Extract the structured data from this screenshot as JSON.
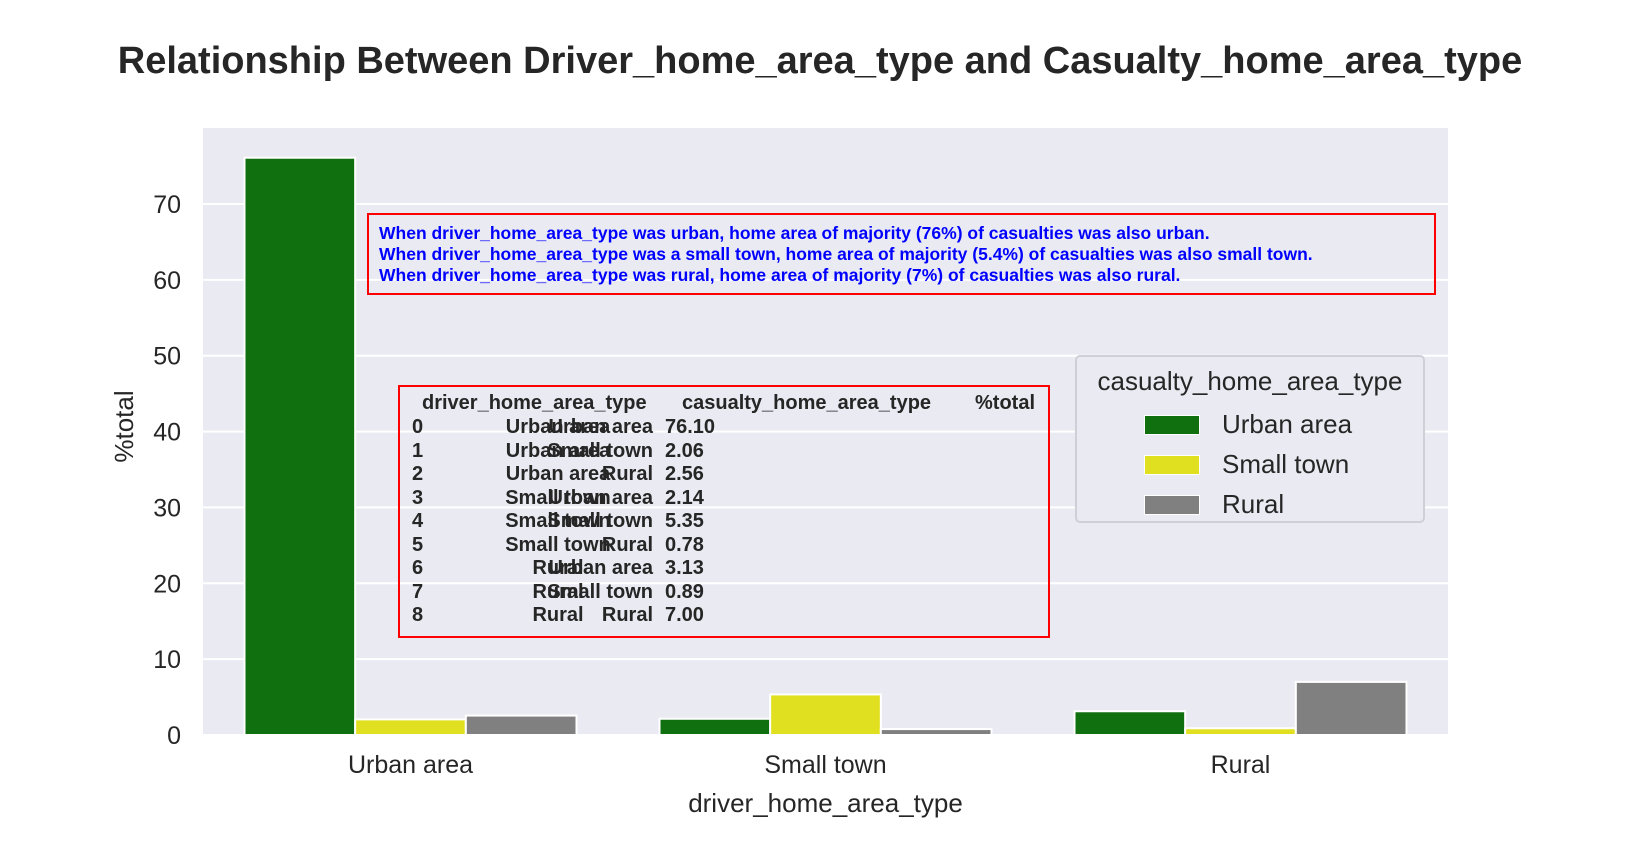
{
  "chart_data": {
    "type": "bar",
    "title": "Relationship Between Driver_home_area_type and Casualty_home_area_type",
    "xlabel": "driver_home_area_type",
    "ylabel": "%total",
    "categories": [
      "Urban area",
      "Small town",
      "Rural"
    ],
    "series": [
      {
        "name": "Urban area",
        "color": "#107010",
        "values": [
          76.1,
          2.14,
          3.13
        ]
      },
      {
        "name": "Small town",
        "color": "#e0e020",
        "values": [
          2.06,
          5.35,
          0.89
        ]
      },
      {
        "name": "Rural",
        "color": "#808080",
        "values": [
          2.56,
          0.78,
          7.0
        ]
      }
    ],
    "yticks": [
      "0",
      "10",
      "20",
      "30",
      "40",
      "50",
      "60",
      "70"
    ],
    "ylim": [
      0,
      80
    ],
    "grid": true,
    "background": "#eaeaf2",
    "legend": {
      "title": "casualty_home_area_type",
      "placement": "center-right"
    },
    "annotations": [
      "When driver_home_area_type was urban, home area of majority (76%) of casualties was also urban.",
      "When driver_home_area_type was a small town, home area of majority (5.4%) of casualties was also small town.",
      "When driver_home_area_type was rural, home area of majority (7%) of casualties was also rural."
    ],
    "table": {
      "header": [
        "driver_home_area_type",
        "casualty_home_area_type",
        "%total"
      ],
      "rows": [
        [
          "0",
          "Urban area",
          "Urban area",
          "76.10"
        ],
        [
          "1",
          "Urban area",
          "Small town",
          "2.06"
        ],
        [
          "2",
          "Urban area",
          "Rural",
          "2.56"
        ],
        [
          "3",
          "Small town",
          "Urban area",
          "2.14"
        ],
        [
          "4",
          "Small town",
          "Small town",
          "5.35"
        ],
        [
          "5",
          "Small town",
          "Rural",
          "0.78"
        ],
        [
          "6",
          "Rural",
          "Urban area",
          "3.13"
        ],
        [
          "7",
          "Rural",
          "Small town",
          "0.89"
        ],
        [
          "8",
          "Rural",
          "Rural",
          "7.00"
        ]
      ]
    }
  }
}
